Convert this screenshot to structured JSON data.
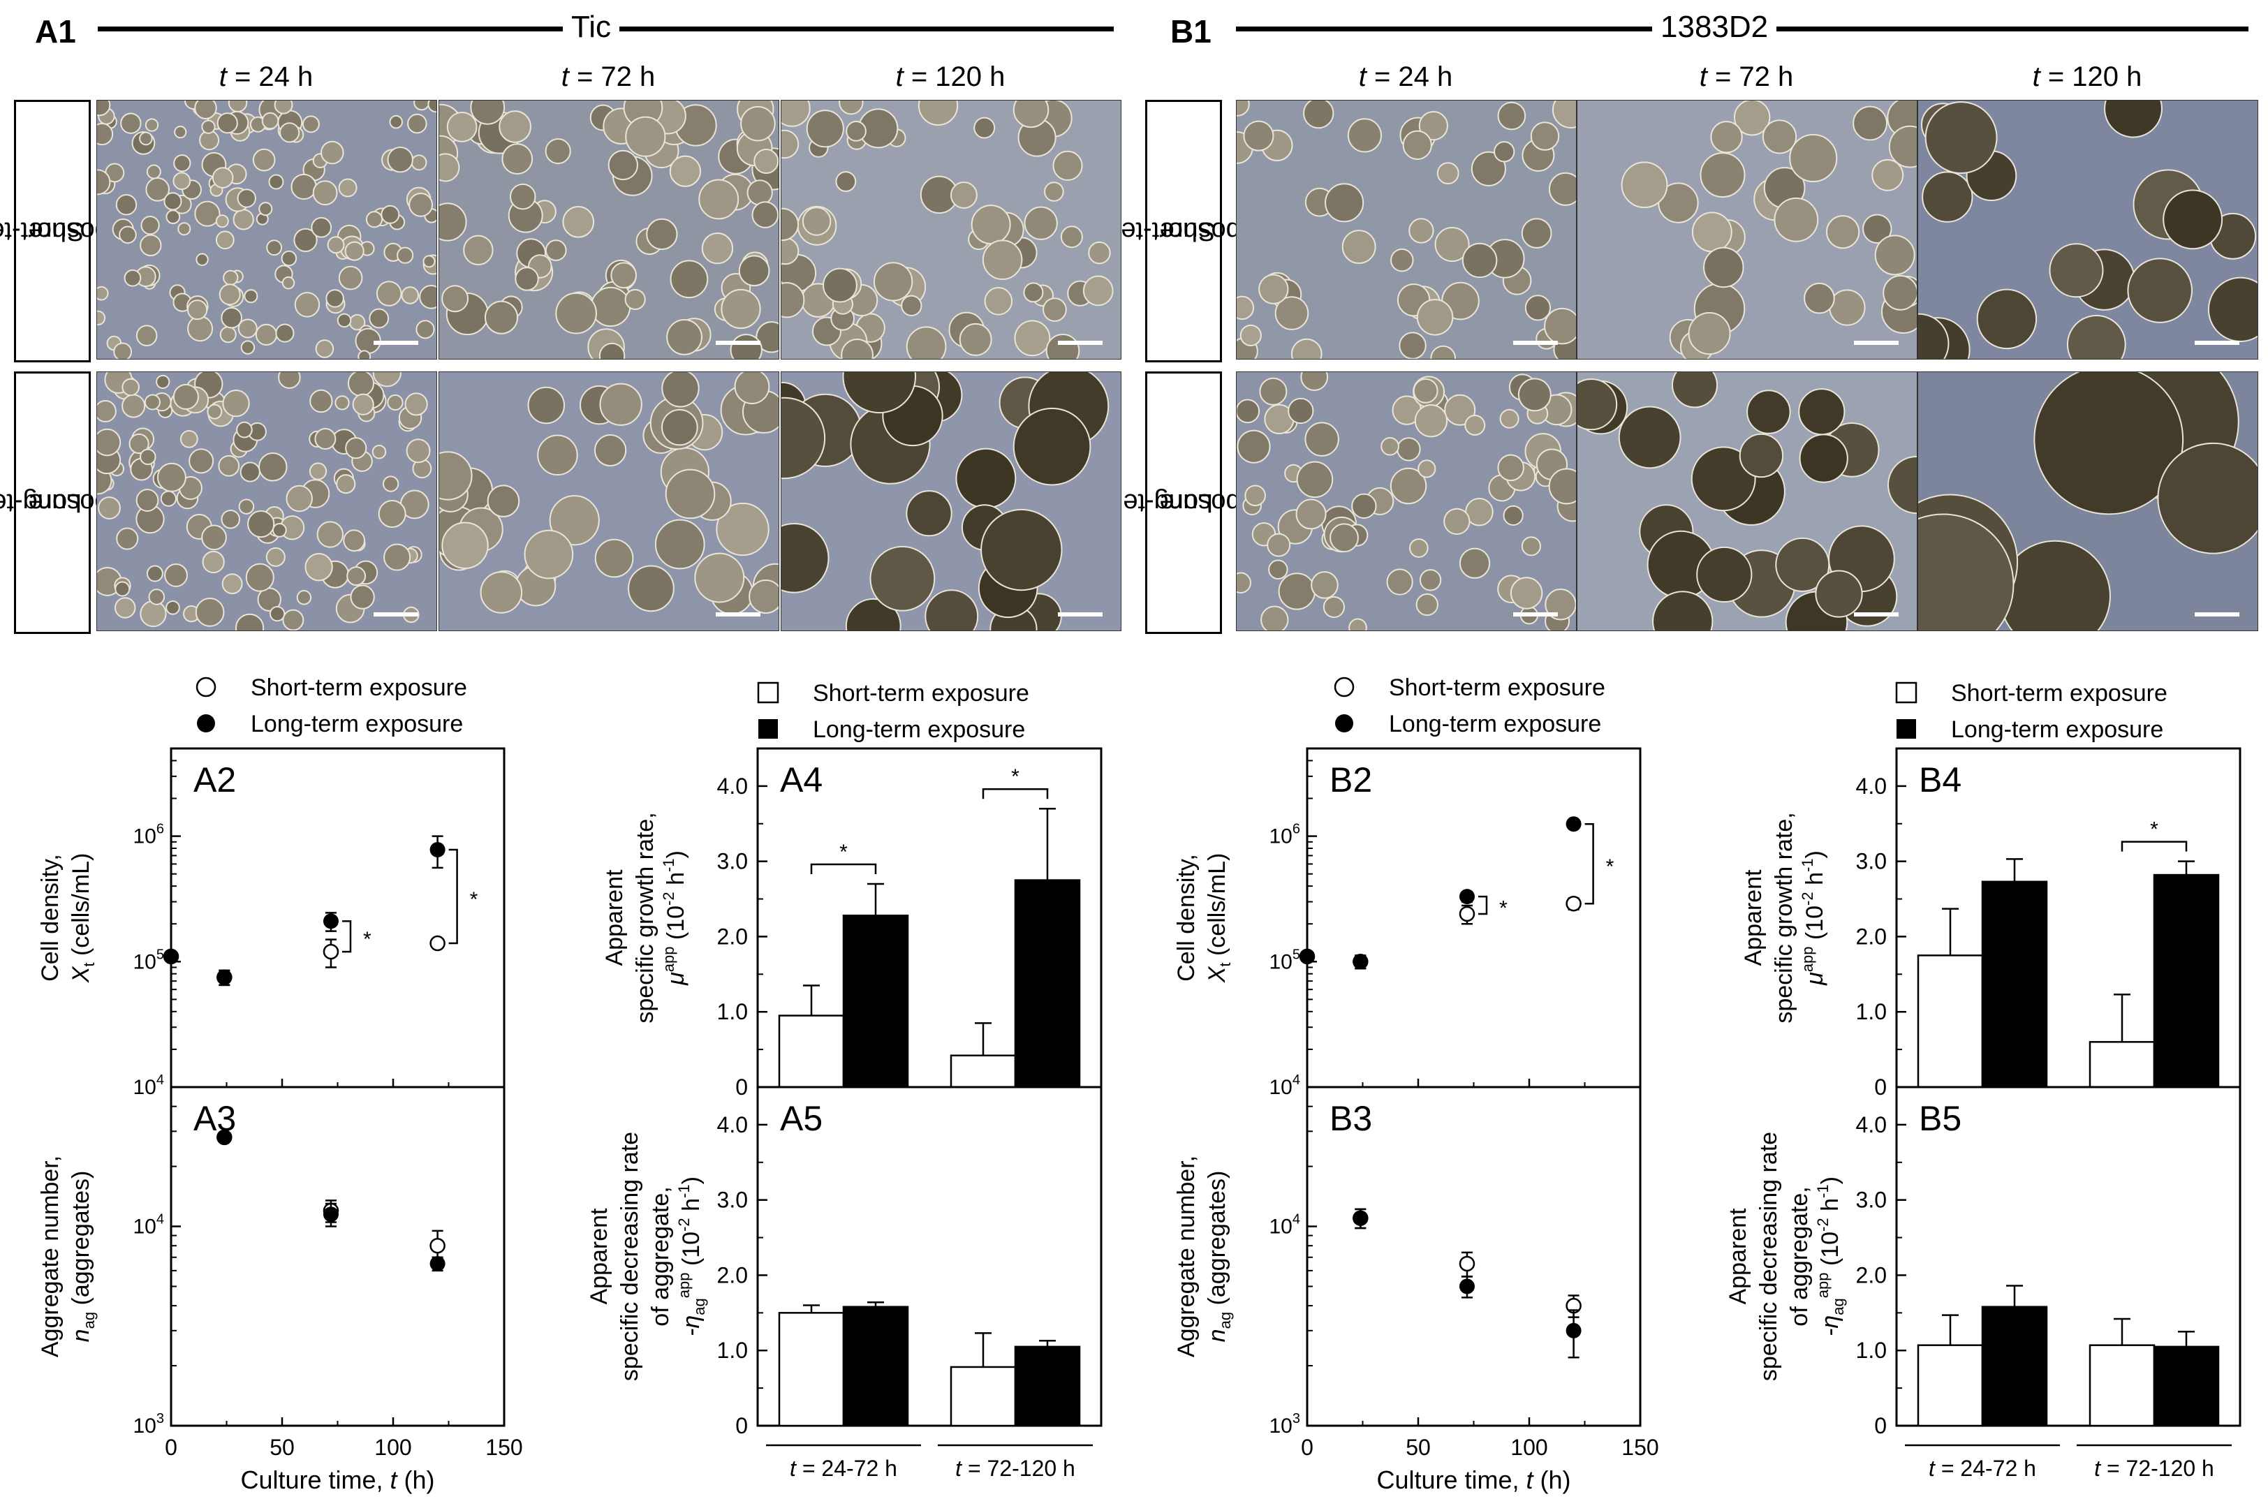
{
  "figure": {
    "A": {
      "id": "A1",
      "cell_line": "Tic",
      "timepoints": [
        "24 h",
        "72 h",
        "120 h"
      ],
      "rows": [
        {
          "l1": "Short-term",
          "l2": "exposure"
        },
        {
          "l1": "Long-term",
          "l2": "exposure"
        }
      ]
    },
    "B": {
      "id": "B1",
      "cell_line": "1383D2",
      "timepoints": [
        "24 h",
        "72 h",
        "120 h"
      ],
      "rows": [
        {
          "l1": "Short-term",
          "l2": "exposure"
        },
        {
          "l1": "Long-term",
          "l2": "exposure"
        }
      ]
    },
    "t_symbol": "t",
    "t_eq": " = "
  },
  "legends": {
    "short": "Short-term exposure",
    "long": "Long-term exposure"
  },
  "chart_data": [
    {
      "id": "A2",
      "type": "scatter",
      "yscale": "log",
      "ylabel_line1": "Cell density,",
      "ylabel_line2": "X",
      "ylabel_sub": "t",
      "ylabel_unit": " (cells/mL)",
      "xlim": [
        0,
        150
      ],
      "ylim": [
        10000,
        5000000
      ],
      "yticks": [
        {
          "v": 10000,
          "b": "10",
          "e": "4"
        },
        {
          "v": 100000,
          "b": "10",
          "e": "5"
        },
        {
          "v": 1000000,
          "b": "10",
          "e": "6"
        }
      ],
      "series": [
        {
          "name": "Short-term exposure",
          "x": [
            0,
            24,
            72,
            120
          ],
          "y": [
            110000,
            75000,
            120000,
            140000
          ],
          "err": [
            0,
            10000,
            30000,
            0
          ]
        },
        {
          "name": "Long-term exposure",
          "x": [
            0,
            24,
            72,
            120
          ],
          "y": [
            110000,
            75000,
            210000,
            780000
          ],
          "err": [
            0,
            10000,
            35000,
            220000
          ]
        }
      ],
      "significance": [
        {
          "x": 72,
          "y_low": 120000,
          "y_high": 210000,
          "label": "*"
        },
        {
          "x": 120,
          "y_low": 140000,
          "y_high": 780000,
          "label": "*"
        }
      ]
    },
    {
      "id": "A3",
      "type": "scatter",
      "yscale": "log",
      "ylabel_line1": "Aggregate number,",
      "ylabel_line2": "n",
      "ylabel_sub": "ag",
      "ylabel_unit": " (aggregates)",
      "xlabel": "Culture time, ",
      "xlabel_sym": "t",
      "xlabel_unit": " (h)",
      "xlim": [
        0,
        150
      ],
      "ylim": [
        1000,
        50000
      ],
      "xticks": [
        0,
        50,
        100,
        150
      ],
      "yticks": [
        {
          "v": 1000,
          "b": "10",
          "e": "3"
        },
        {
          "v": 10000,
          "b": "10",
          "e": "4"
        }
      ],
      "series": [
        {
          "name": "Short-term exposure",
          "x": [
            24,
            72,
            120
          ],
          "y": [
            28000,
            12000,
            8000
          ],
          "err": [
            1200,
            1500,
            1500
          ]
        },
        {
          "name": "Long-term exposure",
          "x": [
            24,
            72,
            120
          ],
          "y": [
            28000,
            11500,
            6500
          ],
          "err": [
            1200,
            1500,
            500
          ]
        }
      ]
    },
    {
      "id": "A4",
      "type": "bar",
      "ylabel_line1": "Apparent",
      "ylabel_line2": "specific growth rate,",
      "ylabel_line3": "μ",
      "ylabel_sup": "app",
      "ylabel_unit": " (10",
      "ylabel_unit_sup": "-2",
      "ylabel_unit_end": " h",
      "ylabel_unit_sup2": "-1",
      "ylabel_close": ")",
      "ylim": [
        0,
        4.5
      ],
      "yticks": [
        "0",
        "1.0",
        "2.0",
        "3.0",
        "4.0"
      ],
      "series": [
        {
          "name": "Short-term exposure",
          "values": [
            0.95,
            0.42
          ],
          "err": [
            0.4,
            0.43
          ]
        },
        {
          "name": "Long-term exposure",
          "values": [
            2.28,
            2.75
          ],
          "err": [
            0.42,
            0.95
          ]
        }
      ],
      "significance": [
        {
          "group": 0,
          "label": "*"
        },
        {
          "group": 1,
          "label": "*"
        }
      ]
    },
    {
      "id": "A5",
      "type": "bar",
      "ylabel_line1": "Apparent",
      "ylabel_line2": "specific decreasing rate",
      "ylabel_line3": "of aggregate,",
      "ylabel_line4": "-η",
      "ylabel_sub4": "ag",
      "ylabel_sup4": "app",
      "ylabel_unit": " (10",
      "ylabel_unit_sup": "-2",
      "ylabel_unit_end": " h",
      "ylabel_unit_sup2": "-1",
      "ylabel_close": ")",
      "ylim": [
        0,
        4.5
      ],
      "yticks": [
        "0",
        "1.0",
        "2.0",
        "3.0",
        "4.0"
      ],
      "categories": [
        "t = 24-72 h",
        "t = 72-120 h"
      ],
      "series": [
        {
          "name": "Short-term exposure",
          "values": [
            1.5,
            0.78
          ],
          "err": [
            0.1,
            0.45
          ]
        },
        {
          "name": "Long-term exposure",
          "values": [
            1.58,
            1.05
          ],
          "err": [
            0.06,
            0.08
          ]
        }
      ]
    },
    {
      "id": "B2",
      "type": "scatter",
      "yscale": "log",
      "ylabel_line1": "Cell density,",
      "ylabel_line2": "X",
      "ylabel_sub": "t",
      "ylabel_unit": " (cells/mL)",
      "xlim": [
        0,
        150
      ],
      "ylim": [
        10000,
        5000000
      ],
      "yticks": [
        {
          "v": 10000,
          "b": "10",
          "e": "4"
        },
        {
          "v": 100000,
          "b": "10",
          "e": "5"
        },
        {
          "v": 1000000,
          "b": "10",
          "e": "6"
        }
      ],
      "series": [
        {
          "name": "Short-term exposure",
          "x": [
            0,
            24,
            72,
            120
          ],
          "y": [
            110000,
            100000,
            240000,
            290000
          ],
          "err": [
            0,
            12000,
            40000,
            30000
          ]
        },
        {
          "name": "Long-term exposure",
          "x": [
            0,
            24,
            72,
            120
          ],
          "y": [
            110000,
            100000,
            330000,
            1250000
          ],
          "err": [
            0,
            12000,
            30000,
            60000
          ]
        }
      ],
      "significance": [
        {
          "x": 72,
          "y_low": 240000,
          "y_high": 330000,
          "label": "*"
        },
        {
          "x": 120,
          "y_low": 290000,
          "y_high": 1250000,
          "label": "*"
        }
      ]
    },
    {
      "id": "B3",
      "type": "scatter",
      "yscale": "log",
      "ylabel_line1": "Aggregate number,",
      "ylabel_line2": "n",
      "ylabel_sub": "ag",
      "ylabel_unit": " (aggregates)",
      "xlabel": "Culture time, ",
      "xlabel_sym": "t",
      "xlabel_unit": " (h)",
      "xlim": [
        0,
        150
      ],
      "ylim": [
        1000,
        50000
      ],
      "xticks": [
        0,
        50,
        100,
        150
      ],
      "yticks": [
        {
          "v": 1000,
          "b": "10",
          "e": "3"
        },
        {
          "v": 10000,
          "b": "10",
          "e": "4"
        }
      ],
      "series": [
        {
          "name": "Short-term exposure",
          "x": [
            24,
            72,
            120
          ],
          "y": [
            11000,
            6500,
            4000
          ],
          "err": [
            1200,
            900,
            500
          ]
        },
        {
          "name": "Long-term exposure",
          "x": [
            24,
            72,
            120
          ],
          "y": [
            11000,
            5000,
            3000
          ],
          "err": [
            1200,
            600,
            800
          ]
        }
      ]
    },
    {
      "id": "B4",
      "type": "bar",
      "ylabel_line1": "Apparent",
      "ylabel_line2": "specific growth rate,",
      "ylabel_line3": "μ",
      "ylabel_sup": "app",
      "ylabel_unit": " (10",
      "ylabel_unit_sup": "-2",
      "ylabel_unit_end": " h",
      "ylabel_unit_sup2": "-1",
      "ylabel_close": ")",
      "ylim": [
        0,
        4.5
      ],
      "yticks": [
        "0",
        "1.0",
        "2.0",
        "3.0",
        "4.0"
      ],
      "series": [
        {
          "name": "Short-term exposure",
          "values": [
            1.75,
            0.6
          ],
          "err": [
            0.62,
            0.63
          ]
        },
        {
          "name": "Long-term exposure",
          "values": [
            2.73,
            2.82
          ],
          "err": [
            0.3,
            0.18
          ]
        }
      ],
      "significance": [
        {
          "group": 1,
          "label": "*"
        }
      ]
    },
    {
      "id": "B5",
      "type": "bar",
      "ylabel_line1": "Apparent",
      "ylabel_line2": "specific decreasing rate",
      "ylabel_line3": "of aggregate,",
      "ylabel_line4": "-η",
      "ylabel_sub4": "ag",
      "ylabel_sup4": "app",
      "ylabel_unit": " (10",
      "ylabel_unit_sup": "-2",
      "ylabel_unit_end": " h",
      "ylabel_unit_sup2": "-1",
      "ylabel_close": ")",
      "ylim": [
        0,
        4.5
      ],
      "yticks": [
        "0",
        "1.0",
        "2.0",
        "3.0",
        "4.0"
      ],
      "categories": [
        "t = 24-72 h",
        "t = 72-120 h"
      ],
      "series": [
        {
          "name": "Short-term exposure",
          "values": [
            1.07,
            1.07
          ],
          "err": [
            0.4,
            0.35
          ]
        },
        {
          "name": "Long-term exposure",
          "values": [
            1.58,
            1.05
          ],
          "err": [
            0.28,
            0.2
          ]
        }
      ]
    }
  ]
}
